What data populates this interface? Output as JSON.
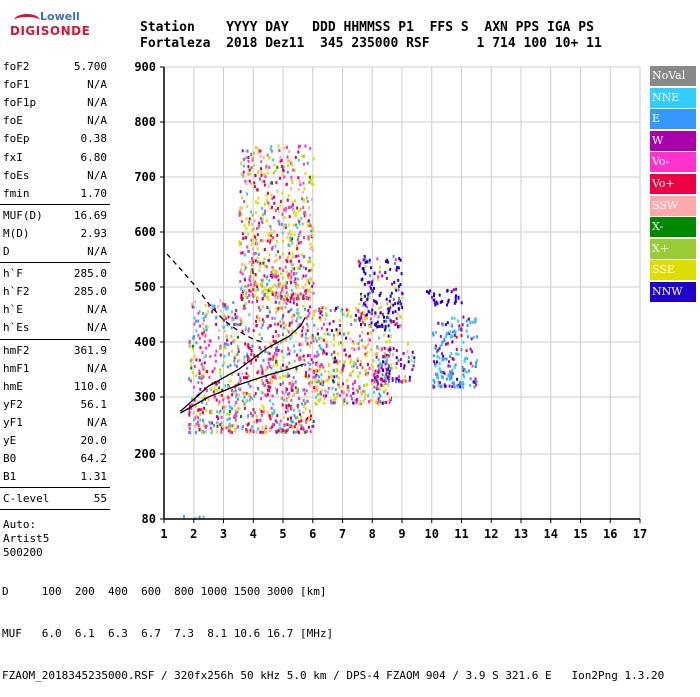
{
  "header": {
    "labels_line": "Station    YYYY DAY   DDD HHMMSS P1  FFS S  AXN PPS IGA PS",
    "values_line": "Fortaleza  2018 Dez11  345 235000 RSF      1 714 100 10+ 11"
  },
  "logo": {
    "brand": "Lowell",
    "product": "DIGISONDE"
  },
  "params_group1": [
    {
      "key": "foF2",
      "value": "5.700"
    },
    {
      "key": "foF1",
      "value": "N/A"
    },
    {
      "key": "foF1p",
      "value": "N/A"
    },
    {
      "key": "foE",
      "value": "N/A"
    },
    {
      "key": "foEp",
      "value": "0.38"
    },
    {
      "key": "fxI",
      "value": "6.80"
    },
    {
      "key": "foEs",
      "value": "N/A"
    },
    {
      "key": "fmin",
      "value": "1.70"
    }
  ],
  "params_group2": [
    {
      "key": "MUF(D)",
      "value": "16.69"
    },
    {
      "key": "M(D)",
      "value": "2.93"
    },
    {
      "key": "D",
      "value": "N/A"
    }
  ],
  "params_group3": [
    {
      "key": "h`F",
      "value": "285.0"
    },
    {
      "key": "h`F2",
      "value": "285.0"
    },
    {
      "key": "h`E",
      "value": "N/A"
    },
    {
      "key": "h`Es",
      "value": "N/A"
    }
  ],
  "params_group4": [
    {
      "key": "hmF2",
      "value": "361.9"
    },
    {
      "key": "hmF1",
      "value": "N/A"
    },
    {
      "key": "hmE",
      "value": "110.0"
    },
    {
      "key": "yF2",
      "value": "56.1"
    },
    {
      "key": "yF1",
      "value": "N/A"
    },
    {
      "key": "yE",
      "value": "20.0"
    },
    {
      "key": "B0",
      "value": "64.2"
    },
    {
      "key": "B1",
      "value": "1.31"
    }
  ],
  "params_group5": [
    {
      "key": "C-level",
      "value": "55"
    }
  ],
  "auto": {
    "line1": "Auto:",
    "line2": "Artist5",
    "line3": "500200"
  },
  "legend": [
    {
      "label": "NoVal",
      "color": "#888888"
    },
    {
      "label": "NNE",
      "color": "#33ccff"
    },
    {
      "label": "E",
      "color": "#3399ff"
    },
    {
      "label": "W",
      "color": "#aa00aa"
    },
    {
      "label": "Vo-",
      "color": "#ff33cc"
    },
    {
      "label": "Vo+",
      "color": "#ee0044"
    },
    {
      "label": "SSW",
      "color": "#ffaaaa"
    },
    {
      "label": "X-",
      "color": "#008800"
    },
    {
      "label": "X+",
      "color": "#99cc33"
    },
    {
      "label": "SSE",
      "color": "#dddd00"
    },
    {
      "label": "NNW",
      "color": "#2200cc"
    }
  ],
  "bottom": {
    "d_line": "D     100  200  400  600  800 1000 1500 3000 [km]",
    "muf_line": "MUF   6.0  6.1  6.3  6.7  7.3  8.1 10.6 16.7 [MHz]",
    "footer": "FZAOM_2018345235000.RSF / 320fx256h 50 kHz 5.0 km / DPS-4 FZAOM 904 / 3.9 S 321.6 E   Ion2Png 1.3.20"
  },
  "chart_data": {
    "type": "scatter",
    "x_ticks": [
      "1",
      "2",
      "3",
      "4",
      "5",
      "6",
      "7",
      "8",
      "9",
      "10",
      "11",
      "12",
      "13",
      "14",
      "15",
      "16",
      "17"
    ],
    "y_ticks": [
      "80",
      "200",
      "300",
      "400",
      "500",
      "600",
      "700",
      "800",
      "900"
    ],
    "xlim": [
      1,
      17
    ],
    "ylim": [
      80,
      900
    ],
    "grid": true,
    "legend_position": "right",
    "clusters": [
      {
        "x": [
          1.5,
          2.3
        ],
        "y": [
          83,
          88
        ],
        "weights": [
          0.6,
          0.1,
          0.05,
          0,
          0,
          0,
          0,
          0,
          0,
          0.25,
          0
        ]
      },
      {
        "x": [
          1.8,
          6.0
        ],
        "y": [
          240,
          480
        ],
        "weights": [
          0.04,
          0.1,
          0.1,
          0.05,
          0.2,
          0.2,
          0.1,
          0.02,
          0.04,
          0.15,
          0.0
        ]
      },
      {
        "x": [
          3.5,
          6.0
        ],
        "y": [
          480,
          760
        ],
        "weights": [
          0.03,
          0.05,
          0.05,
          0.05,
          0.2,
          0.15,
          0.1,
          0.02,
          0.05,
          0.3,
          0.0
        ]
      },
      {
        "x": [
          6.0,
          8.6
        ],
        "y": [
          290,
          470
        ],
        "weights": [
          0.03,
          0.05,
          0.1,
          0.05,
          0.15,
          0.1,
          0.1,
          0.02,
          0.05,
          0.3,
          0.05
        ]
      },
      {
        "x": [
          7.5,
          9.0
        ],
        "y": [
          430,
          560
        ],
        "weights": [
          0.02,
          0.02,
          0.05,
          0.05,
          0.05,
          0.05,
          0.02,
          0.0,
          0.02,
          0.1,
          0.62
        ]
      },
      {
        "x": [
          8.0,
          9.4
        ],
        "y": [
          330,
          400
        ],
        "weights": [
          0.0,
          0.05,
          0.1,
          0.3,
          0.1,
          0.1,
          0.05,
          0.0,
          0.0,
          0.1,
          0.2
        ]
      },
      {
        "x": [
          10.0,
          11.5
        ],
        "y": [
          320,
          450
        ],
        "weights": [
          0.0,
          0.3,
          0.3,
          0.2,
          0.0,
          0.1,
          0.0,
          0.0,
          0.0,
          0.0,
          0.1
        ]
      },
      {
        "x": [
          9.8,
          11.0
        ],
        "y": [
          470,
          500
        ],
        "weights": [
          0.0,
          0.0,
          0.0,
          0.3,
          0.0,
          0.0,
          0.0,
          0.0,
          0.0,
          0.0,
          0.7
        ]
      }
    ],
    "profile_line": [
      [
        1.55,
        275
      ],
      [
        2.5,
        320
      ],
      [
        3.5,
        350
      ],
      [
        4.5,
        390
      ],
      [
        5.2,
        410
      ],
      [
        5.6,
        430
      ],
      [
        5.75,
        445
      ]
    ],
    "trace_line": [
      [
        1.55,
        272
      ],
      [
        2.5,
        300
      ],
      [
        3.5,
        322
      ],
      [
        4.5,
        340
      ],
      [
        5.3,
        352
      ],
      [
        5.7,
        360
      ]
    ],
    "dashed_curve": [
      [
        1.1,
        560
      ],
      [
        1.6,
        530
      ],
      [
        2.0,
        505
      ],
      [
        2.5,
        470
      ],
      [
        3.0,
        440
      ],
      [
        3.5,
        420
      ],
      [
        4.0,
        405
      ],
      [
        4.3,
        400
      ]
    ]
  }
}
